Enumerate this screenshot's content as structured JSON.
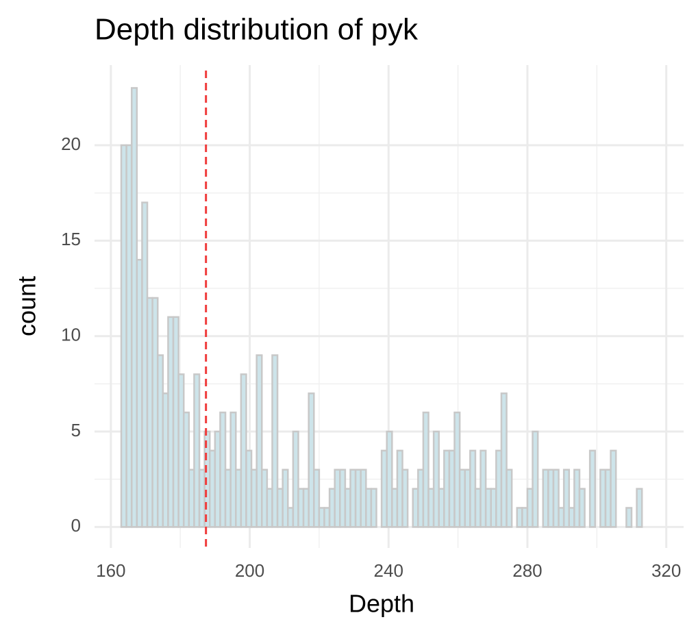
{
  "chart_data": {
    "type": "histogram",
    "title": "Depth distribution of pyk",
    "x_label": "Depth",
    "y_label": "count",
    "bins": [
      163,
      164.5,
      166,
      167.5,
      169,
      170.5,
      172,
      173.5,
      175,
      176.5,
      178,
      179.5,
      181,
      182.5,
      184,
      185.5,
      187,
      188.5,
      190,
      191.5,
      193,
      194.5,
      196,
      197.5,
      199,
      200.5,
      202,
      203.5,
      205,
      206.5,
      208,
      209.5,
      211,
      212.5,
      214,
      215.5,
      217,
      218.5,
      220,
      221.5,
      223,
      224.5,
      226,
      227.5,
      229,
      230.5,
      232,
      233.5,
      235,
      236.5,
      238,
      239.5,
      241,
      242.5,
      244,
      245.5,
      247,
      248.5,
      250,
      251.5,
      253,
      254.5,
      256,
      257.5,
      259,
      260.5,
      262,
      263.5,
      265,
      266.5,
      268,
      269.5,
      271,
      272.5,
      274,
      275.5,
      277,
      278.5,
      280,
      281.5,
      283,
      284.5,
      286,
      287.5,
      289,
      290.5,
      292,
      293.5,
      295,
      296.5,
      298,
      299.5,
      301,
      302.5,
      304,
      305.5,
      307,
      308.5,
      310,
      311.5,
      313
    ],
    "counts": [
      20,
      20,
      23,
      14,
      17,
      12,
      12,
      9,
      7,
      11,
      11,
      8,
      6,
      3,
      8,
      3,
      5,
      4,
      5,
      6,
      3,
      6,
      3,
      8,
      4,
      3,
      9,
      3,
      2,
      9,
      2,
      3,
      1,
      5,
      2,
      2,
      7,
      3,
      1,
      1,
      2,
      3,
      3,
      2,
      3,
      3,
      3,
      2,
      2,
      0,
      4,
      5,
      2,
      4,
      3,
      0,
      2,
      3,
      6,
      2,
      5,
      2,
      4,
      4,
      6,
      3,
      3,
      4,
      2,
      4,
      2,
      2,
      4,
      7,
      3,
      0,
      1,
      1,
      2,
      5,
      0,
      3,
      3,
      3,
      1,
      3,
      1,
      3,
      2,
      0,
      4,
      0,
      3,
      3,
      4,
      0,
      0,
      1,
      0,
      2
    ],
    "fill": "#cde4ea",
    "edge_color": "#c8c8c8",
    "xlim": [
      155.3,
      325
    ],
    "xticks": [
      160,
      200,
      240,
      280,
      320
    ],
    "ylim": [
      -1.1,
      24.2
    ],
    "yticks": [
      0,
      5,
      10,
      15,
      20
    ],
    "grid": true,
    "vline": 187.4,
    "vline_color": "#f03a3a"
  }
}
